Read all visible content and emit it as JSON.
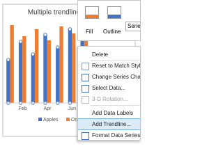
{
  "chart": {
    "type": "bar",
    "title": "Multiple trendlines",
    "categories": [
      null,
      "Feb",
      null,
      "Apr",
      null,
      "Jun",
      null
    ],
    "ylim": [
      0,
      120
    ],
    "series": [
      {
        "name": "Apples",
        "color": "#4472c4",
        "values": [
          62,
          88,
          70,
          98,
          80,
          106,
          94
        ]
      },
      {
        "name": "Oranges",
        "color": "#ed7d31",
        "values": [
          112,
          96,
          106,
          90,
          110,
          100,
          114
        ]
      }
    ]
  },
  "toolbar": {
    "fill": "Fill",
    "outline": "Outline",
    "series_box": "Series \"A"
  },
  "context_menu": {
    "items": [
      "Delete",
      "Reset to Match Style",
      "Change Series Chart Type...",
      "Select Data...",
      "3-D Rotation...",
      "Add Data Labels",
      "Add Trendline...",
      "Format Data Series..."
    ]
  }
}
